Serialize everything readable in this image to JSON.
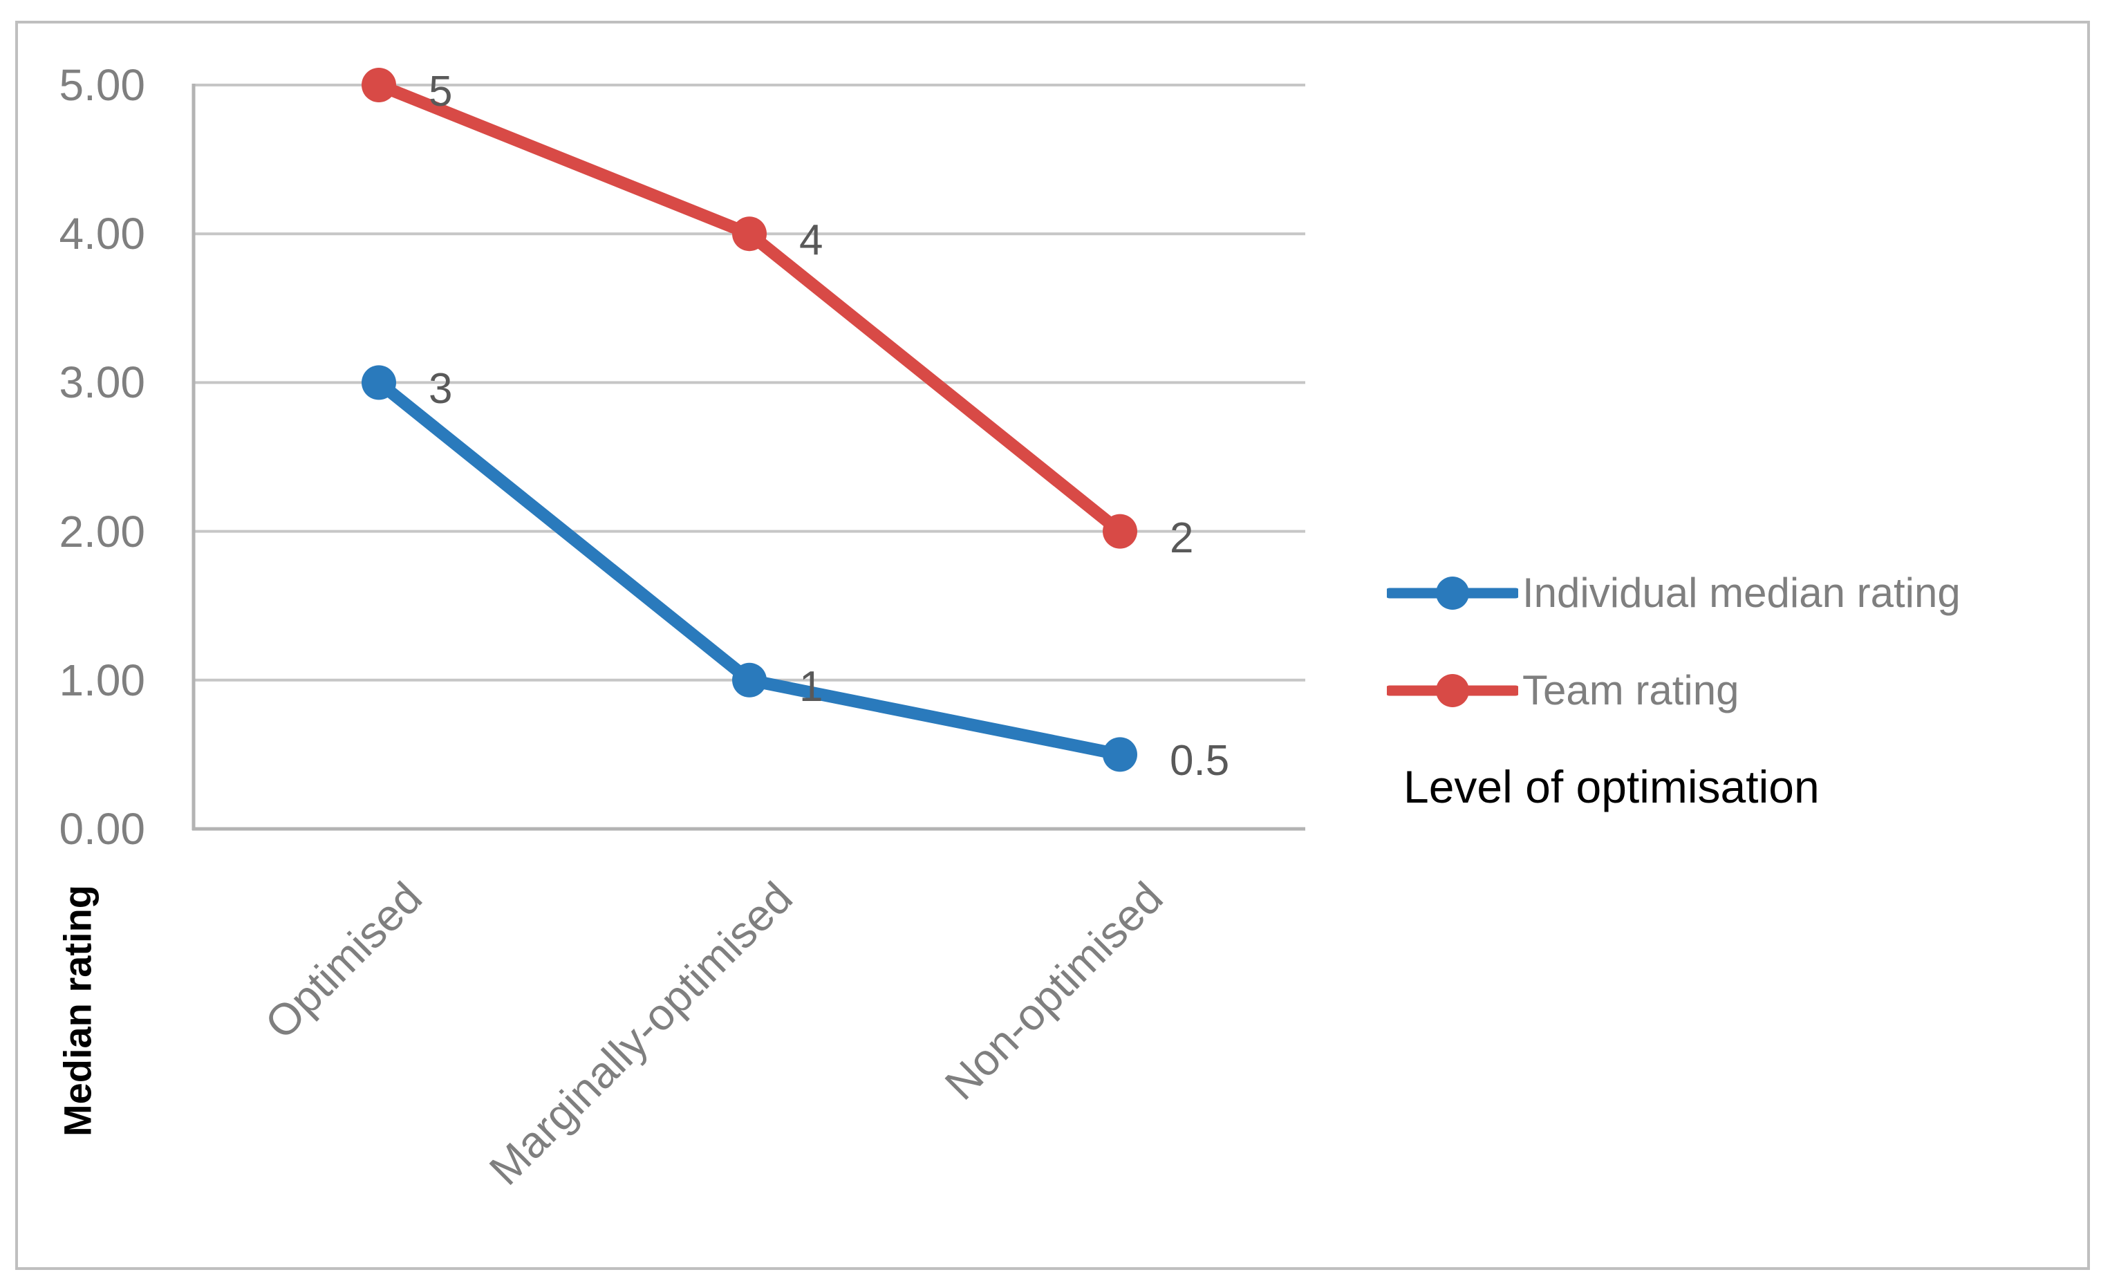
{
  "chart_data": {
    "type": "line",
    "title": "",
    "categories": [
      "Optimised",
      "Marginally-optimised",
      "Non-optimised"
    ],
    "series": [
      {
        "name": "Individual median rating",
        "values": [
          3,
          1,
          0.5
        ],
        "data_labels": [
          "3",
          "1",
          "0.5"
        ],
        "color": "#2a7abc"
      },
      {
        "name": "Team rating",
        "values": [
          5,
          4,
          2
        ],
        "data_labels": [
          "5",
          "4",
          "2"
        ],
        "color": "#d84a46"
      }
    ],
    "ylabel": "Median rating",
    "xlabel": "Level of optimisation",
    "y_ticks": [
      "5.00",
      "4.00",
      "3.00",
      "2.00",
      "1.00",
      "0.00"
    ],
    "ylim": [
      0,
      5
    ],
    "grid": true,
    "legend_position": "right-middle",
    "marker": "circle"
  },
  "colors": {
    "gridline": "#c6c6c6",
    "axis_line": "#b3b3b3",
    "chart_border": "#bfbfbf",
    "axis_text": "#7f7f7f",
    "data_label_text": "#595959",
    "note_text": "#000000",
    "background": "#ffffff"
  }
}
